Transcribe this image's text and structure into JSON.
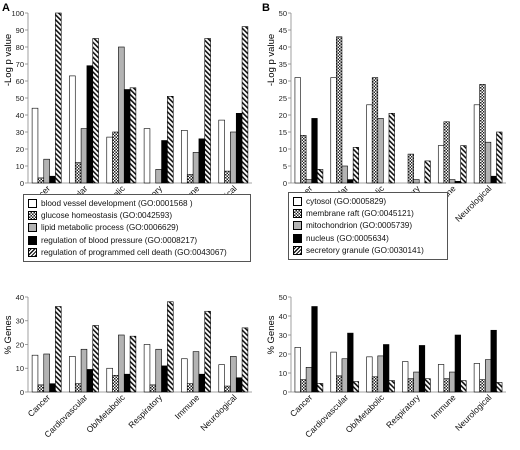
{
  "panels": {
    "A": "A",
    "B": "B"
  },
  "colors": {
    "c0": "#ffffff",
    "c1": "#999999",
    "c2": "#bbbbbb",
    "c3": "#000000",
    "c4": "#dddddd"
  },
  "legend_left": [
    {
      "label": "blood vessel development (GO:0001568 )",
      "pattern": "white"
    },
    {
      "label": "glucose homeostasis (GO:0042593)",
      "pattern": "checker"
    },
    {
      "label": "lipid metabolic process (GO:0006629)",
      "pattern": "gray"
    },
    {
      "label": "regulation  of blood pressure (GO:0008217)",
      "pattern": "black"
    },
    {
      "label": "regulation  of programmed cell death (GO:0043067)",
      "pattern": "diag"
    }
  ],
  "legend_right": [
    {
      "label": "cytosol (GO:0005829)",
      "pattern": "white"
    },
    {
      "label": "membrane raft (GO:0045121)",
      "pattern": "checker"
    },
    {
      "label": "mitochondrion (GO:0005739)",
      "pattern": "gray"
    },
    {
      "label": "nucleus (GO:0005634)",
      "pattern": "black"
    },
    {
      "label": "secretory granule (GO:0030141)",
      "pattern": "diag"
    }
  ],
  "chart_data": [
    {
      "id": "A-top",
      "type": "bar",
      "ylabel": "-Log p value",
      "ylim": [
        0,
        100
      ],
      "yticks": [
        0,
        10,
        20,
        30,
        40,
        50,
        60,
        70,
        80,
        90,
        100
      ],
      "categories": [
        "Cancer",
        "Cardiovascular",
        "Ob/Metabolic",
        "Respiratory",
        "Immune",
        "Neurological"
      ],
      "series": [
        {
          "name": "blood vessel development (GO:0001568 )",
          "pattern": "white",
          "values": [
            44,
            63,
            27,
            32,
            31,
            37
          ]
        },
        {
          "name": "glucose homeostasis (GO:0042593)",
          "pattern": "checker",
          "values": [
            3,
            12,
            30,
            0,
            5,
            7
          ]
        },
        {
          "name": "lipid metabolic process (GO:0006629)",
          "pattern": "gray",
          "values": [
            14,
            32,
            80,
            8,
            18,
            30
          ]
        },
        {
          "name": "regulation  of blood pressure (GO:0008217)",
          "pattern": "black",
          "values": [
            4,
            69,
            55,
            25,
            26,
            41
          ]
        },
        {
          "name": "regulation  of programmed cell death (GO:0043067)",
          "pattern": "diag",
          "values": [
            100,
            85,
            56,
            51,
            85,
            92
          ]
        }
      ]
    },
    {
      "id": "B-top",
      "type": "bar",
      "ylabel": "-Log p value",
      "ylim": [
        0,
        50
      ],
      "yticks": [
        0,
        5,
        10,
        15,
        20,
        25,
        30,
        35,
        40,
        45,
        50
      ],
      "categories": [
        "Cancer",
        "Cardiovascular",
        "Ob/Metabolic",
        "Respiratory",
        "Immune",
        "Neurological"
      ],
      "series": [
        {
          "name": "cytosol (GO:0005829)",
          "pattern": "white",
          "values": [
            31,
            31,
            23,
            0,
            11,
            23
          ]
        },
        {
          "name": "membrane raft (GO:0045121)",
          "pattern": "checker",
          "values": [
            14,
            43,
            31,
            8.5,
            18,
            29
          ]
        },
        {
          "name": "mitochondrion (GO:0005739)",
          "pattern": "gray",
          "values": [
            1,
            5,
            19,
            1,
            1,
            12
          ]
        },
        {
          "name": "nucleus (GO:0005634)",
          "pattern": "black",
          "values": [
            19,
            1,
            0,
            0,
            0.5,
            2
          ]
        },
        {
          "name": "secretory granule (GO:0030141)",
          "pattern": "diag",
          "values": [
            4,
            10.5,
            20.5,
            6.5,
            11,
            15
          ]
        }
      ]
    },
    {
      "id": "A-bottom",
      "type": "bar",
      "ylabel": "% Genes",
      "ylim": [
        0,
        40
      ],
      "yticks": [
        0,
        10,
        20,
        30,
        40
      ],
      "categories": [
        "Cancer",
        "Cardiovascular",
        "Ob/Metabolic",
        "Respiratory",
        "Immune",
        "Neurological"
      ],
      "series": [
        {
          "name": "blood vessel development (GO:0001568 )",
          "pattern": "white",
          "values": [
            15.5,
            15,
            10,
            20,
            14,
            11.5
          ]
        },
        {
          "name": "glucose homeostasis (GO:0042593)",
          "pattern": "checker",
          "values": [
            3,
            3.5,
            7,
            3,
            3.5,
            2.5
          ]
        },
        {
          "name": "lipid metabolic process (GO:0006629)",
          "pattern": "gray",
          "values": [
            16,
            18,
            24,
            18,
            17,
            15
          ]
        },
        {
          "name": "regulation  of blood pressure (GO:0008217)",
          "pattern": "black",
          "values": [
            3.5,
            9.5,
            7.5,
            11,
            7.5,
            6
          ]
        },
        {
          "name": "regulation  of programmed cell death (GO:0043067)",
          "pattern": "diag",
          "values": [
            36,
            28,
            23.5,
            38,
            34,
            27
          ]
        }
      ]
    },
    {
      "id": "B-bottom",
      "type": "bar",
      "ylabel": "% Genes",
      "ylim": [
        0,
        50
      ],
      "yticks": [
        0,
        10,
        20,
        30,
        40,
        50
      ],
      "categories": [
        "Cancer",
        "Cardiovascular",
        "Ob/Metabolic",
        "Respiratory",
        "Immune",
        "Neurological"
      ],
      "series": [
        {
          "name": "cytosol (GO:0005829)",
          "pattern": "white",
          "values": [
            23.5,
            21,
            18.5,
            16,
            14.5,
            15
          ]
        },
        {
          "name": "membrane raft (GO:0045121)",
          "pattern": "checker",
          "values": [
            6.5,
            8.5,
            8,
            7,
            7,
            6.5
          ]
        },
        {
          "name": "mitochondrion (GO:0005739)",
          "pattern": "gray",
          "values": [
            13,
            17.5,
            19,
            10.5,
            10.5,
            17
          ]
        },
        {
          "name": "nucleus (GO:0005634)",
          "pattern": "black",
          "values": [
            45,
            31,
            25,
            24.5,
            30,
            32.5
          ]
        },
        {
          "name": "secretory granule (GO:0030141)",
          "pattern": "diag",
          "values": [
            4.5,
            5.5,
            6,
            7,
            6,
            5
          ]
        }
      ]
    }
  ]
}
